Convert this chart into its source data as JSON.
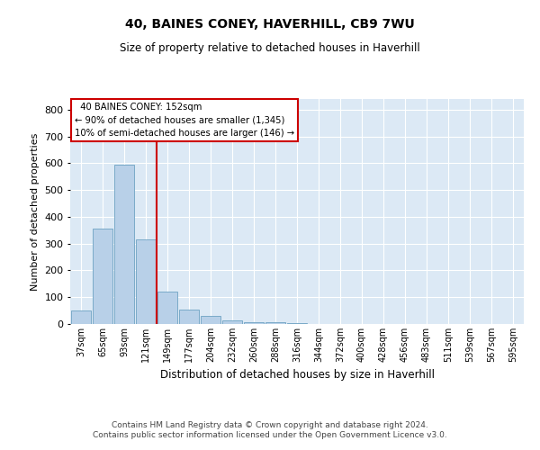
{
  "title": "40, BAINES CONEY, HAVERHILL, CB9 7WU",
  "subtitle": "Size of property relative to detached houses in Haverhill",
  "xlabel": "Distribution of detached houses by size in Haverhill",
  "ylabel": "Number of detached properties",
  "footer_line1": "Contains HM Land Registry data © Crown copyright and database right 2024.",
  "footer_line2": "Contains public sector information licensed under the Open Government Licence v3.0.",
  "annotation_line1": "  40 BAINES CONEY: 152sqm",
  "annotation_line2": "← 90% of detached houses are smaller (1,345)",
  "annotation_line3": "10% of semi-detached houses are larger (146) →",
  "bar_color": "#b8d0e8",
  "bar_edge_color": "#7aaac8",
  "ref_line_color": "#cc0000",
  "bg_color": "#dce9f5",
  "annotation_box_color": "#ffffff",
  "annotation_box_edge": "#cc0000",
  "categories": [
    "37sqm",
    "65sqm",
    "93sqm",
    "121sqm",
    "149sqm",
    "177sqm",
    "204sqm",
    "232sqm",
    "260sqm",
    "288sqm",
    "316sqm",
    "344sqm",
    "372sqm",
    "400sqm",
    "428sqm",
    "456sqm",
    "483sqm",
    "511sqm",
    "539sqm",
    "567sqm",
    "595sqm"
  ],
  "values": [
    50,
    355,
    595,
    315,
    120,
    55,
    30,
    15,
    8,
    8,
    5,
    0,
    0,
    0,
    0,
    0,
    0,
    0,
    0,
    0,
    0
  ],
  "ref_line_x": 3.5,
  "ylim": [
    0,
    840
  ],
  "yticks": [
    0,
    100,
    200,
    300,
    400,
    500,
    600,
    700,
    800
  ],
  "figwidth": 6.0,
  "figheight": 5.0,
  "dpi": 100
}
